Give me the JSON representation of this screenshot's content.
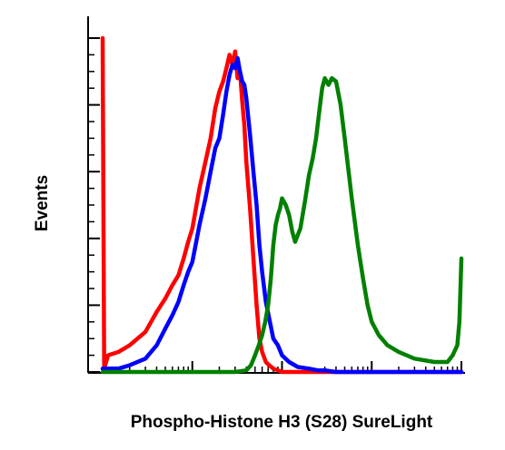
{
  "chart_data": {
    "type": "line",
    "title": "",
    "xlabel": "Phospho-Histone H3 (S28) SureLight",
    "ylabel": "Events",
    "x_scale": "log",
    "xlim": [
      1,
      10000
    ],
    "ylim": [
      0,
      100
    ],
    "x_major_ticks": [
      10,
      100,
      1000,
      10000
    ],
    "y_major_ticks": [
      0,
      20,
      40,
      60,
      80,
      100
    ],
    "tick_labels_shown": false,
    "grid": false,
    "legend": "none",
    "series": [
      {
        "color": "#ff0000",
        "x": [
          1,
          1.04,
          1.15,
          1.5,
          2,
          3,
          4,
          5,
          6,
          7,
          8,
          9,
          10,
          12,
          14,
          16,
          18,
          20,
          22,
          24,
          26,
          28,
          30,
          32,
          34,
          36,
          38,
          40,
          44,
          48,
          52,
          56,
          60,
          66,
          72,
          80,
          90,
          100,
          120,
          150,
          300,
          1000,
          10000
        ],
        "y": [
          100,
          1,
          5,
          6,
          8,
          12,
          18,
          22,
          26,
          29,
          34,
          39,
          43,
          55,
          63,
          70,
          79,
          84,
          87,
          91,
          95,
          92,
          96,
          88,
          90,
          81,
          74,
          63,
          49,
          34,
          20,
          10,
          6,
          3,
          2,
          1,
          0.5,
          0,
          0,
          0,
          0,
          0,
          0
        ]
      },
      {
        "color": "#0000ff",
        "x": [
          1,
          1.5,
          2,
          3,
          4,
          5,
          6,
          7,
          8,
          9,
          10,
          12,
          14,
          16,
          18,
          20,
          22,
          24,
          26,
          28,
          30,
          32,
          34,
          36,
          38,
          40,
          44,
          48,
          52,
          56,
          60,
          66,
          72,
          80,
          90,
          100,
          120,
          150,
          200,
          250,
          300,
          400,
          500,
          1000,
          10000
        ],
        "y": [
          1,
          1,
          2,
          4,
          8,
          13,
          17,
          21,
          26,
          30,
          33,
          44,
          52,
          60,
          67,
          70,
          77,
          84,
          89,
          92,
          91,
          94,
          90,
          87,
          86,
          82,
          71,
          60,
          50,
          38,
          30,
          21,
          16,
          10,
          8,
          5,
          3,
          1.5,
          1,
          0.5,
          0.5,
          0,
          0,
          0,
          0
        ]
      },
      {
        "color": "#008000",
        "x": [
          1,
          10,
          30,
          40,
          45,
          50,
          55,
          60,
          65,
          70,
          75,
          80,
          85,
          90,
          95,
          100,
          110,
          120,
          130,
          140,
          160,
          180,
          200,
          220,
          240,
          260,
          280,
          300,
          330,
          360,
          400,
          450,
          500,
          600,
          700,
          800,
          900,
          1000,
          1200,
          1500,
          2000,
          3000,
          5000,
          7000,
          8000,
          9000,
          9500,
          10000
        ],
        "y": [
          0,
          0,
          0,
          0.5,
          2,
          5,
          8,
          11,
          15,
          20,
          28,
          38,
          44,
          47,
          49,
          52,
          50,
          47,
          42,
          39,
          43,
          51,
          59,
          64,
          70,
          78,
          85,
          88,
          86,
          88,
          87,
          80,
          70,
          52,
          38,
          28,
          20,
          15,
          11,
          8,
          6,
          4,
          3,
          3,
          5,
          8,
          15,
          34
        ]
      }
    ]
  }
}
